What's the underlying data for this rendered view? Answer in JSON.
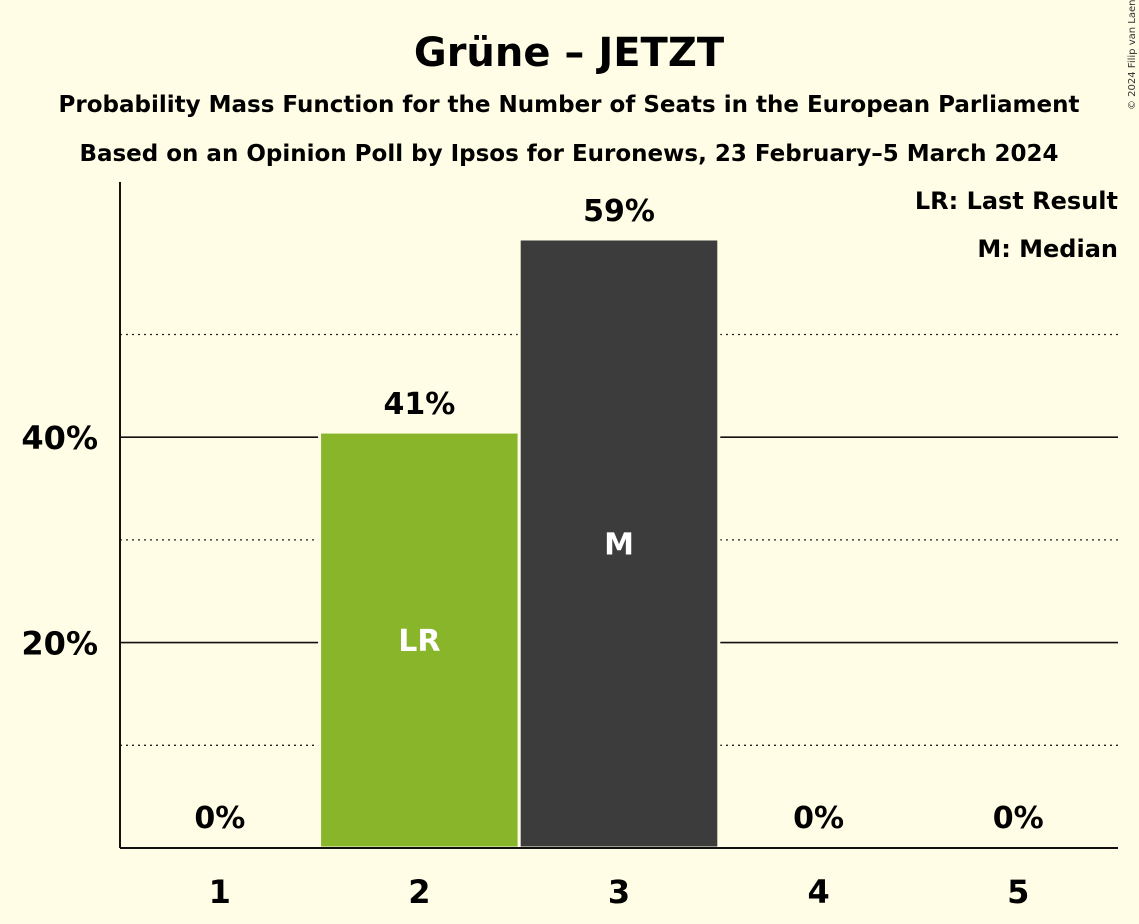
{
  "title": "Grüne – JETZT",
  "subtitle1": "Probability Mass Function for the Number of Seats in the European Parliament",
  "subtitle2": "Based on an Opinion Poll by Ipsos for Euronews, 23 February–5 March 2024",
  "copyright": "© 2024 Filip van Laenen",
  "legend": {
    "last_result": "LR: Last Result",
    "median": "M: Median"
  },
  "colors": {
    "background": "#fffde5",
    "last_result_bar": "#88b52a",
    "median_bar": "#3c3c3c",
    "text": "#111111"
  },
  "chart_data": {
    "type": "bar",
    "title": "Grüne – JETZT",
    "xlabel": "",
    "ylabel": "",
    "categories": [
      "1",
      "2",
      "3",
      "4",
      "5"
    ],
    "values": [
      0,
      40.5,
      59.3,
      0,
      0
    ],
    "value_labels": [
      "0%",
      "41%",
      "59%",
      "0%",
      "0%"
    ],
    "bar_markers": [
      "",
      "LR",
      "M",
      "",
      ""
    ],
    "bar_colors": [
      "#88b52a",
      "#88b52a",
      "#3c3c3c",
      "#3c3c3c",
      "#3c3c3c"
    ],
    "ylim": [
      0,
      65
    ],
    "y_ticks": [
      20,
      40
    ],
    "y_tick_labels": [
      "20%",
      "40%"
    ],
    "minor_gridlines": [
      10,
      30,
      50
    ],
    "grid": true,
    "legend_position": "top-right"
  }
}
